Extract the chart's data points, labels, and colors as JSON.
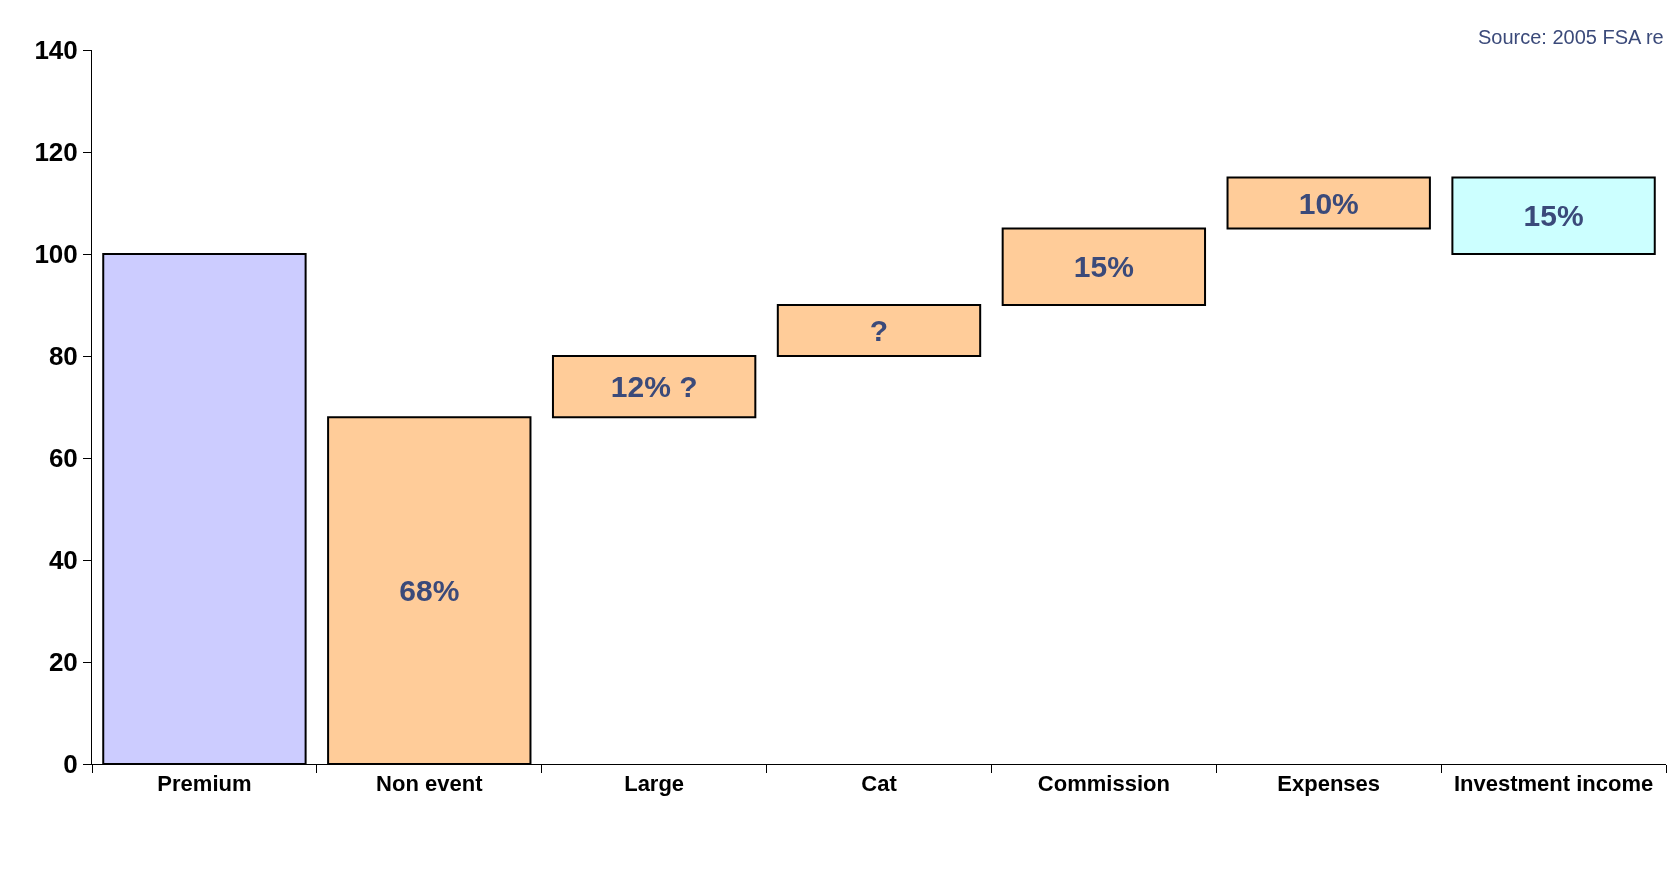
{
  "chart_data": {
    "type": "bar",
    "categories": [
      "Premium",
      "Non event",
      "Large",
      "Cat",
      "Commission",
      "Expenses",
      "Investment income"
    ],
    "values": [
      100,
      68,
      12,
      10,
      15,
      10,
      15
    ],
    "base": [
      0,
      0,
      68,
      80,
      90,
      105,
      100
    ],
    "colors": [
      "#ccccff",
      "#ffcc99",
      "#ffcc99",
      "#ffcc99",
      "#ffcc99",
      "#ffcc99",
      "#ccffff"
    ],
    "value_labels": [
      null,
      "68%",
      "12% ?",
      "?",
      "15%",
      "10%",
      "15%"
    ],
    "ylim": [
      0,
      140
    ],
    "yticks": [
      0,
      20,
      40,
      60,
      80,
      100,
      120,
      140
    ],
    "grid": false,
    "annotations": [
      "Source: 2005 FSA re"
    ]
  }
}
